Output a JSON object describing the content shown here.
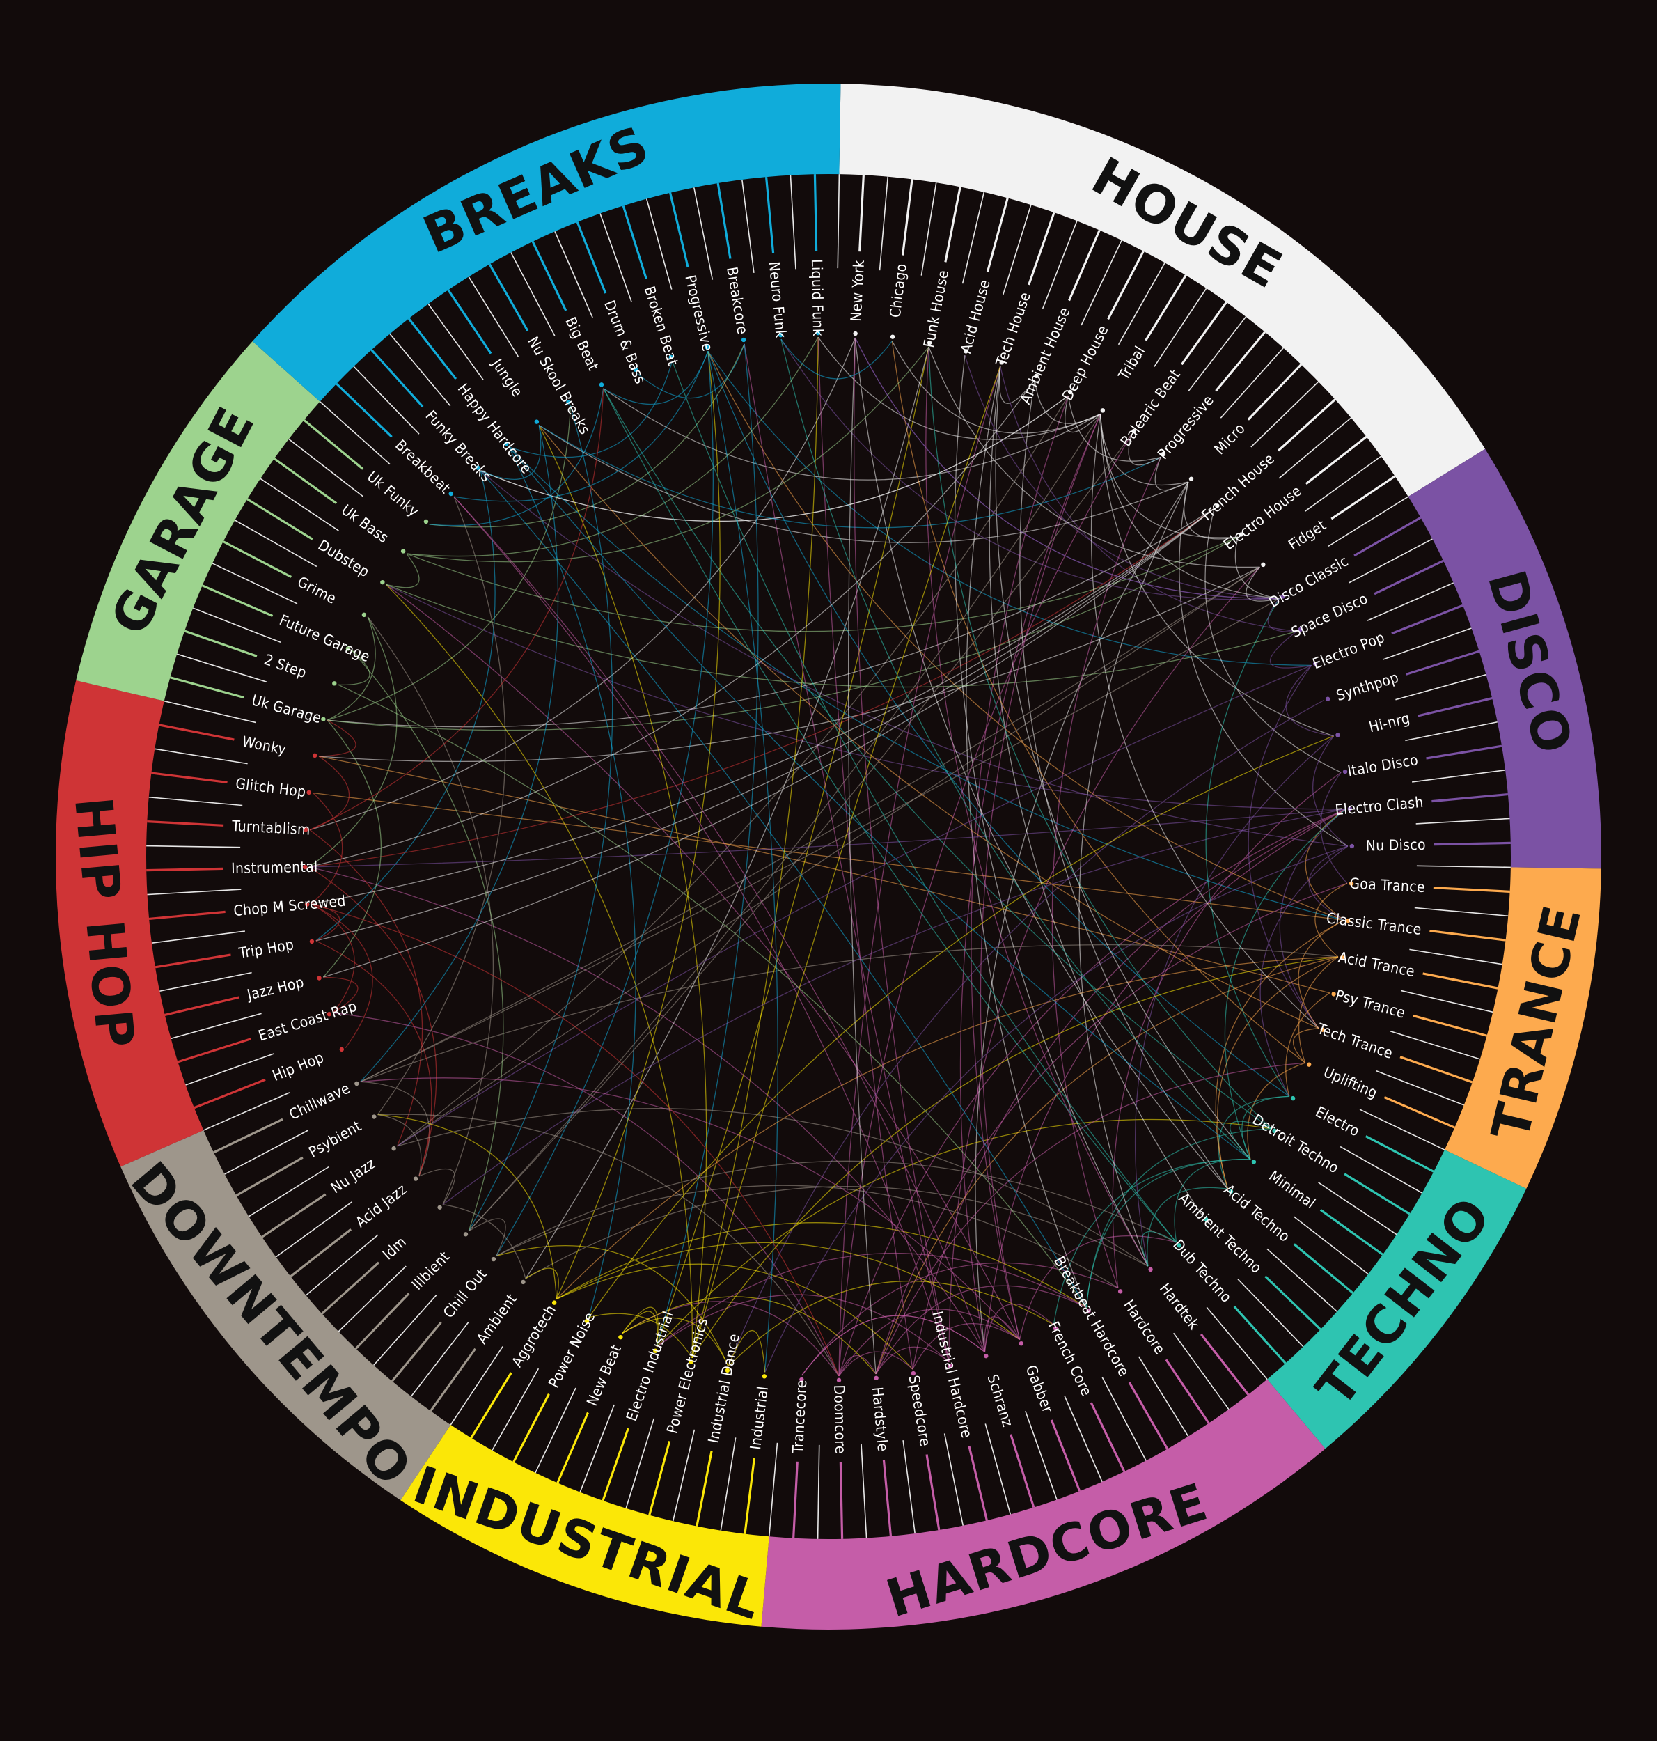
{
  "categories": [
    {
      "name": "HOUSE",
      "color": "#f2f2f2",
      "text_color": "#111111",
      "genres": [
        "New York",
        "Chicago",
        "Funk House",
        "Acid House",
        "Tech House",
        "Ambient House",
        "Deep House",
        "Tribal",
        "Balearic Beat",
        "Progressive",
        "Micro",
        "French House",
        "Electro House",
        "Fidget"
      ]
    },
    {
      "name": "DISCO",
      "color": "#7b52a4",
      "text_color": "#111111",
      "genres": [
        "Disco Classic",
        "Space Disco",
        "Electro Pop",
        "Synthpop",
        "Hi-nrg",
        "Italo Disco",
        "Electro Clash",
        "Nu Disco"
      ]
    },
    {
      "name": "TRANCE",
      "color": "#fdaa4e",
      "text_color": "#111111",
      "genres": [
        "Goa Trance",
        "Classic Trance",
        "Acid Trance",
        "Psy Trance",
        "Tech Trance",
        "Uplifting"
      ]
    },
    {
      "name": "TECHNO",
      "color": "#2ec4b1",
      "text_color": "#111111",
      "genres": [
        "Electro",
        "Detroit Techno",
        "Minimal",
        "Acid Techno",
        "Ambient Techno",
        "Dub Techno"
      ]
    },
    {
      "name": "HARDCORE",
      "color": "#c55da8",
      "text_color": "#111111",
      "genres": [
        "Hardtek",
        "Hardcore",
        "Breakbeat Hardcore",
        "French Core",
        "Gabber",
        "Schranz",
        "Industrial Hardcore",
        "Speedcore",
        "Hardstyle",
        "Doomcore",
        "Trancecore"
      ]
    },
    {
      "name": "INDUSTRIAL",
      "color": "#fbe707",
      "text_color": "#111111",
      "genres": [
        "Industrial",
        "Industrial Dance",
        "Power Electronics",
        "Electro Industrial",
        "New Beat",
        "Power Noise",
        "Aggrotech"
      ]
    },
    {
      "name": "DOWNTEMPO",
      "color": "#9e968b",
      "text_color": "#111111",
      "genres": [
        "Ambient",
        "Chill Out",
        "Illbient",
        "Idm",
        "Acid Jazz",
        "Nu Jazz",
        "Psybient",
        "Chillwave"
      ]
    },
    {
      "name": "HIP HOP",
      "color": "#cf3436",
      "text_color": "#111111",
      "genres": [
        "Hip Hop",
        "East Coast Rap",
        "Jazz Hop",
        "Trip Hop",
        "Chop M Screwed",
        "Instrumental",
        "Turntablism",
        "Glitch Hop",
        "Wonky"
      ]
    },
    {
      "name": "GARAGE",
      "color": "#9dd38e",
      "text_color": "#111111",
      "genres": [
        "Uk Garage",
        "2 Step",
        "Future Garage",
        "Grime",
        "Dubstep",
        "Uk Bass",
        "Uk Funky"
      ]
    },
    {
      "name": "BREAKS",
      "color": "#10acda",
      "text_color": "#111111",
      "genres": [
        "Breakbeat",
        "Funky Breaks",
        "Happy Hardcore",
        "Jungle",
        "Nu Skool Breaks",
        "Big Beat",
        "Drum & Bass",
        "Broken Beat",
        "Progressive",
        "Breakcore",
        "Neuro Funk",
        "Liquid Funk"
      ]
    }
  ]
}
